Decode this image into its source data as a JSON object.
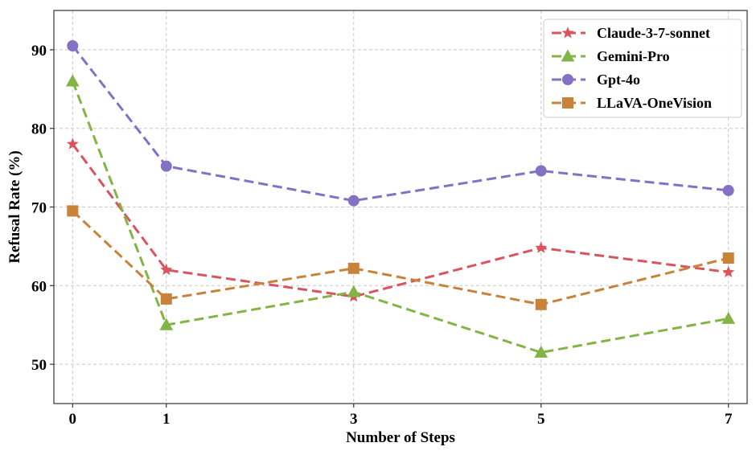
{
  "chart_data": {
    "type": "line",
    "xlabel": "Number of Steps",
    "ylabel": "Refusal Rate (%)",
    "x": [
      0,
      1,
      3,
      5,
      7
    ],
    "x_tick_labels": [
      "0",
      "1",
      "3",
      "5",
      "7"
    ],
    "y_ticks": [
      50,
      60,
      70,
      80,
      90
    ],
    "xlim": [
      -0.2,
      7.2
    ],
    "ylim": [
      45,
      95
    ],
    "grid": true,
    "legend_position": "top-right",
    "series": [
      {
        "name": "Claude-3-7-sonnet",
        "values": [
          78.0,
          62.0,
          58.6,
          64.8,
          61.7
        ],
        "color": "#d9545f",
        "marker": "star"
      },
      {
        "name": "Gemini-Pro",
        "values": [
          86.0,
          55.0,
          59.2,
          51.5,
          55.8
        ],
        "color": "#82b446",
        "marker": "triangle"
      },
      {
        "name": "Gpt-4o",
        "values": [
          90.5,
          75.2,
          70.8,
          74.6,
          72.1
        ],
        "color": "#8470c4",
        "marker": "circle"
      },
      {
        "name": "LLaVA-OneVision",
        "values": [
          69.5,
          58.3,
          62.2,
          57.6,
          63.5
        ],
        "color": "#c8823a",
        "marker": "square"
      }
    ]
  }
}
